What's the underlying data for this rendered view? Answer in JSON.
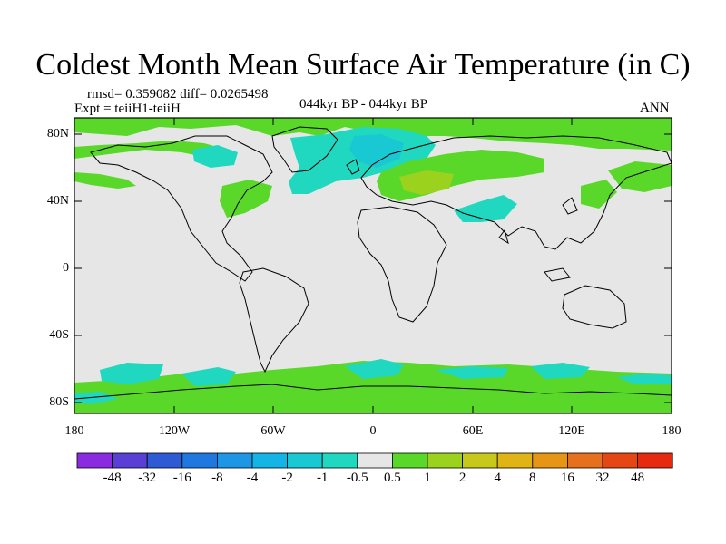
{
  "title": "Coldest Month Mean Surface Air Temperature (in C)",
  "stats": "rmsd= 0.359082 diff= 0.0265498",
  "experiment": "Expt = teiiH1-teiiH",
  "period": "044kyr BP - 044kyr BP",
  "season": "ANN",
  "y_axis": {
    "tick_labels": [
      "80N",
      "40N",
      "0",
      "40S",
      "80S"
    ]
  },
  "x_axis": {
    "tick_labels": [
      "180",
      "120W",
      "60W",
      "0",
      "60E",
      "120E",
      "180"
    ]
  },
  "colorbar": {
    "labels": [
      "-48",
      "-32",
      "-16",
      "-8",
      "-4",
      "-2",
      "-1",
      "-0.5",
      "0.5",
      "1",
      "2",
      "4",
      "8",
      "16",
      "32",
      "48"
    ],
    "colors": [
      "#8a2be2",
      "#5a3fd6",
      "#2f5ad6",
      "#1e78e0",
      "#1e96e6",
      "#14b4e6",
      "#18c8d2",
      "#20d8c0",
      "#e6e6e6",
      "#5ad82a",
      "#9ad21e",
      "#c8c81a",
      "#e0b414",
      "#e69614",
      "#e6701e",
      "#e64614",
      "#e62a10"
    ]
  },
  "map_colors": {
    "background": "#e6e6e6",
    "cool_anomaly": "#20d8c0",
    "cooler_anomaly": "#18c8d2",
    "warm_anomaly": "#5ad82a",
    "warmer_anomaly": "#9ad21e",
    "coastline": "#000000"
  }
}
